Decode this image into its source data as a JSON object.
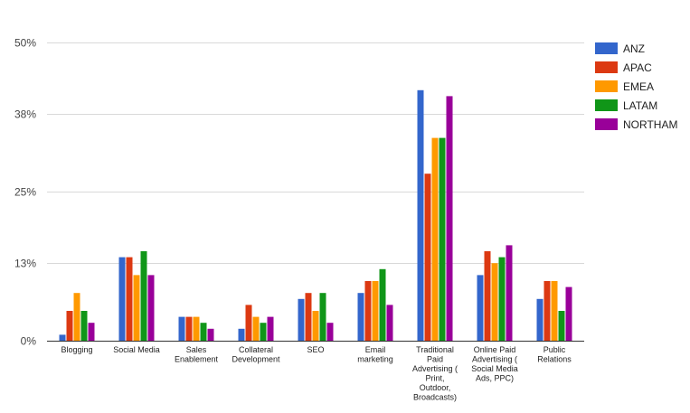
{
  "chart_data": {
    "type": "bar",
    "categories": [
      [
        "Blogging"
      ],
      [
        "Social Media"
      ],
      [
        "Sales",
        "Enablement"
      ],
      [
        "Collateral",
        "Development"
      ],
      [
        "SEO"
      ],
      [
        "Email",
        "marketing"
      ],
      [
        "Traditional",
        "Paid",
        "Advertising (",
        "Print,",
        "Outdoor,",
        "Broadcasts)"
      ],
      [
        "Online Paid",
        "Advertising (",
        "Social Media",
        "Ads, PPC)"
      ],
      [
        "Public",
        "Relations"
      ]
    ],
    "series": [
      {
        "name": "ANZ",
        "color": "#3366cc",
        "values": [
          1,
          14,
          4,
          2,
          7,
          8,
          42,
          11,
          7
        ]
      },
      {
        "name": "APAC",
        "color": "#dc3912",
        "values": [
          5,
          14,
          4,
          6,
          8,
          10,
          28,
          15,
          10
        ]
      },
      {
        "name": "EMEA",
        "color": "#ff9900",
        "values": [
          8,
          11,
          4,
          4,
          5,
          10,
          34,
          13,
          10
        ]
      },
      {
        "name": "LATAM",
        "color": "#109618",
        "values": [
          5,
          15,
          3,
          3,
          8,
          12,
          34,
          14,
          5
        ]
      },
      {
        "name": "NORTHAM",
        "color": "#990099",
        "values": [
          3,
          11,
          2,
          4,
          3,
          6,
          41,
          16,
          9
        ]
      }
    ],
    "yticks": [
      {
        "value": 0,
        "label": "0%"
      },
      {
        "value": 13,
        "label": "13%"
      },
      {
        "value": 25,
        "label": "25%"
      },
      {
        "value": 38,
        "label": "38%"
      },
      {
        "value": 50,
        "label": "50%"
      }
    ],
    "ylim": [
      0,
      50
    ],
    "grid": true,
    "legend": "right"
  }
}
